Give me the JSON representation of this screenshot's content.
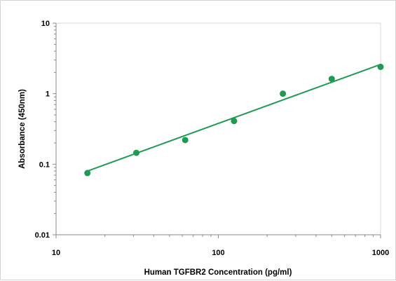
{
  "chart_data": {
    "type": "scatter",
    "title": "",
    "xlabel": "Human TGFBR2 Concentration (pg/ml)",
    "ylabel": "Absorbance (450nm)",
    "xscale": "log",
    "yscale": "log",
    "xlim": [
      10,
      1000
    ],
    "ylim": [
      0.01,
      10
    ],
    "xticks": [
      10,
      100,
      1000
    ],
    "xtick_labels": [
      "10",
      "100",
      "1000"
    ],
    "yticks": [
      0.01,
      0.1,
      1,
      10
    ],
    "ytick_labels": [
      "0.01",
      "0.1",
      "1",
      "10"
    ],
    "grid": false,
    "legend": "none",
    "series": [
      {
        "marker": "circle",
        "color": "#1e9a52",
        "x": [
          15.6,
          31.25,
          62.5,
          125,
          250,
          500,
          1000
        ],
        "y": [
          0.075,
          0.145,
          0.22,
          0.41,
          1.0,
          1.62,
          2.4
        ]
      }
    ],
    "fit_line": {
      "style": "solid",
      "color": "#1e9a52",
      "x": [
        15.6,
        1000
      ],
      "y": [
        0.08,
        2.6
      ]
    }
  }
}
